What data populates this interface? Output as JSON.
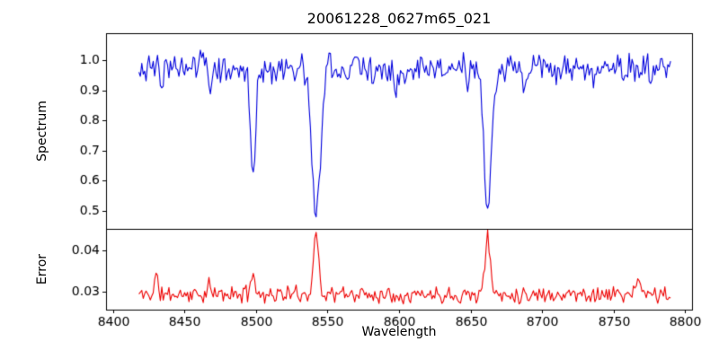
{
  "chart_data": {
    "type": "line",
    "title": "20061228_0627m65_021",
    "xlabel": "Wavelength",
    "grid": false,
    "legend": "none",
    "xlim": [
      8395,
      8805
    ],
    "x_range": [
      8418,
      8790
    ],
    "x_step": 1,
    "x_ticks": [
      8400,
      8450,
      8500,
      8550,
      8600,
      8650,
      8700,
      8750,
      8800
    ],
    "panels": [
      {
        "name": "spectrum",
        "ylabel": "Spectrum",
        "color": "#0000dd",
        "ylim": [
          0.44,
          1.09
        ],
        "y_ticks": [
          0.5,
          0.6,
          0.7,
          0.8,
          0.9,
          1.0
        ],
        "y_tick_labels": [
          "0.5",
          "0.6",
          "0.7",
          "0.8",
          "0.9",
          "1.0"
        ],
        "baseline": 0.975,
        "noise_amplitude": 0.06,
        "seed": 3,
        "lines": [
          {
            "center": 8434,
            "amp": -0.05,
            "sigma": 1.0
          },
          {
            "center": 8446,
            "amp": -0.055,
            "sigma": 0.9
          },
          {
            "center": 8468,
            "amp": -0.075,
            "sigma": 1.0
          },
          {
            "center": 8482,
            "amp": -0.04,
            "sigma": 0.8
          },
          {
            "center": 8498,
            "amp": -0.325,
            "sigma": 1.9
          },
          {
            "center": 8514,
            "amp": -0.07,
            "sigma": 0.9
          },
          {
            "center": 8527,
            "amp": -0.06,
            "sigma": 0.9
          },
          {
            "center": 8542,
            "amp": -0.5,
            "sigma": 3.0
          },
          {
            "center": 8556,
            "amp": -0.04,
            "sigma": 0.8
          },
          {
            "center": 8582,
            "amp": -0.05,
            "sigma": 0.9
          },
          {
            "center": 8598,
            "amp": -0.06,
            "sigma": 1.0
          },
          {
            "center": 8611,
            "amp": -0.045,
            "sigma": 0.8
          },
          {
            "center": 8648,
            "amp": -0.05,
            "sigma": 0.9
          },
          {
            "center": 8662,
            "amp": -0.47,
            "sigma": 2.6
          },
          {
            "center": 8674,
            "amp": -0.05,
            "sigma": 0.8
          },
          {
            "center": 8688,
            "amp": -0.08,
            "sigma": 1.0
          },
          {
            "center": 8712,
            "amp": -0.045,
            "sigma": 0.9
          },
          {
            "center": 8736,
            "amp": -0.04,
            "sigma": 0.8
          },
          {
            "center": 8757,
            "amp": -0.05,
            "sigma": 0.9
          },
          {
            "center": 8776,
            "amp": -0.04,
            "sigma": 0.8
          }
        ]
      },
      {
        "name": "error",
        "ylabel": "Error",
        "color": "#ee0000",
        "ylim": [
          0.0256,
          0.0452
        ],
        "y_ticks": [
          0.03,
          0.04
        ],
        "y_tick_labels": [
          "0.03",
          "0.04"
        ],
        "baseline": 0.0293,
        "noise_amplitude": 0.0025,
        "seed": 11,
        "lines": [
          {
            "center": 8430,
            "amp": 0.0045,
            "sigma": 1.2
          },
          {
            "center": 8467,
            "amp": 0.002,
            "sigma": 1.0
          },
          {
            "center": 8497.5,
            "amp": 0.0062,
            "sigma": 1.3
          },
          {
            "center": 8542,
            "amp": 0.0148,
            "sigma": 1.8
          },
          {
            "center": 8662,
            "amp": 0.0138,
            "sigma": 1.8
          },
          {
            "center": 8768,
            "amp": 0.0032,
            "sigma": 1.5
          }
        ]
      }
    ]
  }
}
